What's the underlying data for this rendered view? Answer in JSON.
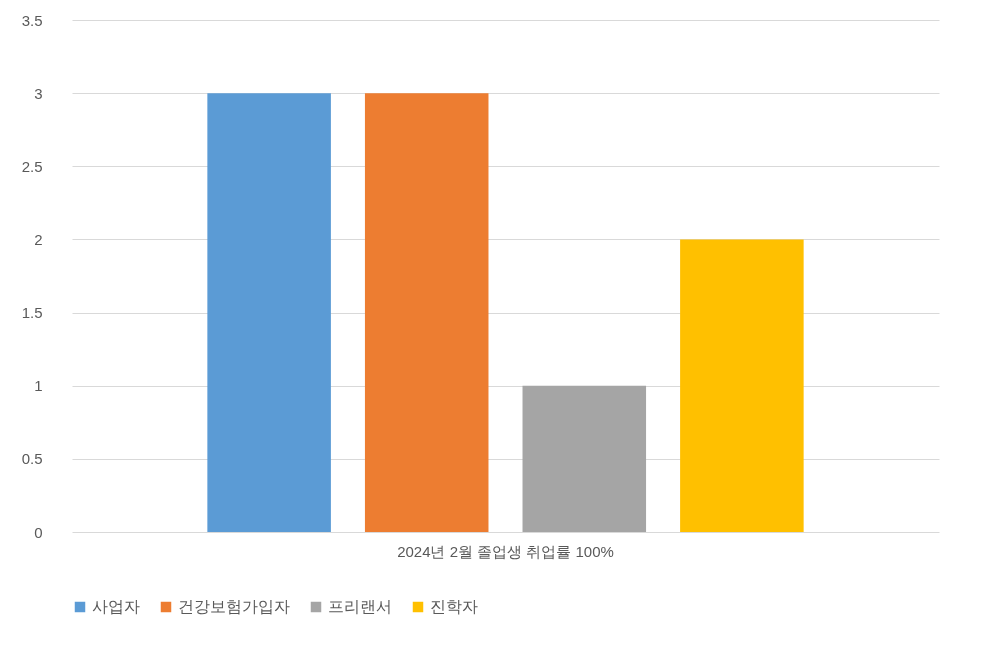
{
  "chart_data": {
    "type": "bar",
    "categories": [
      "2024년 2월 졸업생 취업률 100%"
    ],
    "series": [
      {
        "name": "사업자",
        "color": "#5b9bd5",
        "values": [
          3
        ]
      },
      {
        "name": "건강보험가입자",
        "color": "#ed7d31",
        "values": [
          3
        ]
      },
      {
        "name": "프리랜서",
        "color": "#a5a5a5",
        "values": [
          1
        ]
      },
      {
        "name": "진학자",
        "color": "#ffc000",
        "values": [
          2
        ]
      }
    ],
    "ylim": [
      0,
      3.5
    ],
    "yticks": [
      0,
      0.5,
      1,
      1.5,
      2,
      2.5,
      3,
      3.5
    ],
    "grid": "y",
    "legend": "bottom"
  }
}
